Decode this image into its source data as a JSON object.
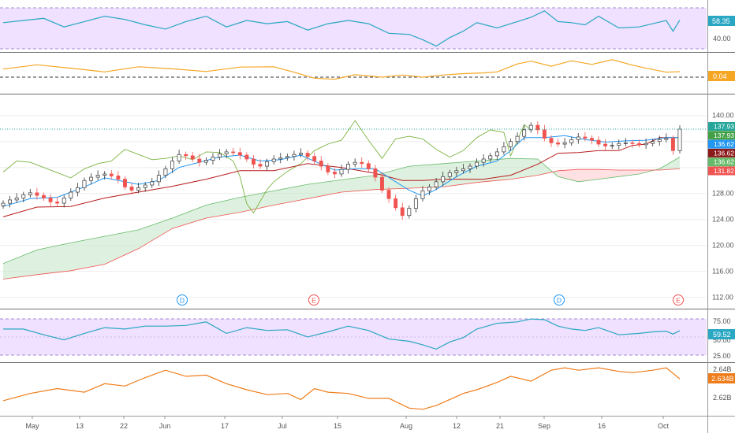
{
  "colors": {
    "rsi_line": "#2aa7c3",
    "rsi_band": "#efe1ff",
    "osc_line": "#f5a623",
    "vol_line": "#ef7c1a",
    "up": "#26a69a",
    "down": "#ef5350",
    "tenkan": "#2196f3",
    "kijun": "#b71c1c",
    "span_a": "#66bb6a",
    "span_b": "#ef5350",
    "lagging": "#7cb342",
    "cloud_bull": "#c8e6c9",
    "cloud_bear": "#ffcdd2",
    "last_price": "#26a69a",
    "grid": "#eeeeee",
    "axis_text": "#555555"
  },
  "x_axis": {
    "labels": [
      "May",
      "13",
      "22",
      "Jun",
      "17",
      "Jul",
      "15",
      "Aug",
      "12",
      "21",
      "Sep",
      "16",
      "Oct"
    ]
  },
  "panes": {
    "rsi_top": {
      "value_label": "58.35",
      "ticks": [
        "40.00"
      ]
    },
    "oscillator": {
      "value_label": "0.04",
      "ticks": []
    },
    "price": {
      "ticks": [
        "140.00",
        "136.00",
        "132.00",
        "128.00",
        "124.00",
        "120.00",
        "116.00",
        "112.00"
      ],
      "badges": [
        {
          "text": "137.93",
          "color": "#26a69a"
        },
        {
          "text": "137.93",
          "color": "#43a047"
        },
        {
          "text": "136.62",
          "color": "#2196f3"
        },
        {
          "text": "136.62",
          "color": "#8b1a1a"
        },
        {
          "text": "136.62",
          "color": "#66bb6a"
        },
        {
          "text": "131.82",
          "color": "#ef5350"
        }
      ],
      "events": [
        {
          "letter": "D",
          "color": "#2196f3"
        },
        {
          "letter": "E",
          "color": "#ef5350"
        },
        {
          "letter": "D",
          "color": "#2196f3"
        },
        {
          "letter": "E",
          "color": "#ef5350"
        }
      ]
    },
    "rsi_bottom": {
      "value_label": "59.52",
      "ticks": [
        "75.00",
        "50.00",
        "25.00"
      ]
    },
    "volume": {
      "value_label": "2.634B",
      "ticks": [
        "2.64B",
        "2.62B"
      ]
    }
  },
  "chart_data": {
    "type": "line",
    "y_price_range": [
      110.5,
      143
    ],
    "candles": {
      "x": [
        0,
        2,
        4,
        6,
        8,
        10,
        12,
        14,
        16,
        18,
        20,
        22,
        24,
        26,
        28,
        30,
        32,
        34,
        36,
        38,
        40,
        42,
        44,
        46,
        48,
        50,
        52,
        54,
        56,
        58,
        60,
        62,
        64,
        66,
        68,
        70,
        72,
        74,
        76,
        78,
        80,
        82,
        84,
        86,
        88,
        90,
        92,
        94,
        96,
        98,
        100,
        102,
        104,
        106,
        108,
        110,
        112,
        114,
        116,
        118,
        120,
        122,
        124,
        126,
        128,
        130,
        132,
        134,
        136,
        138,
        140,
        142,
        144,
        146,
        148,
        150,
        152,
        154,
        156,
        158,
        160,
        162,
        164,
        166,
        168,
        170,
        172,
        174,
        176,
        178,
        180,
        182,
        184,
        186,
        188,
        190,
        192,
        194,
        196,
        198,
        200
      ],
      "close": [
        126.5,
        127.0,
        127.3,
        127.8,
        128.1,
        127.7,
        127.3,
        126.7,
        126.5,
        127.3,
        128.2,
        128.9,
        130.0,
        130.5,
        130.8,
        131.0,
        130.7,
        130.2,
        129.0,
        128.5,
        128.9,
        129.3,
        129.8,
        130.8,
        131.8,
        133.0,
        134.0,
        133.8,
        133.3,
        132.8,
        133.1,
        133.6,
        134.1,
        134.4,
        134.3,
        133.9,
        133.3,
        132.5,
        132.2,
        132.9,
        133.3,
        133.5,
        133.7,
        134.0,
        134.2,
        133.7,
        133.0,
        132.2,
        131.3,
        131.0,
        131.7,
        132.5,
        132.8,
        132.6,
        131.8,
        130.5,
        128.5,
        127.2,
        125.8,
        124.6,
        125.7,
        127.2,
        128.4,
        129.0,
        129.8,
        130.6,
        131.2,
        131.5,
        131.8,
        132.2,
        132.8,
        133.3,
        133.8,
        134.4,
        135.2,
        136.0,
        136.8,
        137.8,
        138.5,
        137.8,
        136.5,
        135.8,
        135.6,
        135.8,
        136.3,
        136.7,
        136.5,
        136.2,
        135.6,
        135.3,
        135.4,
        135.7,
        135.8,
        135.7,
        135.5,
        135.7,
        136.0,
        136.3,
        136.5,
        134.6,
        137.9
      ]
    },
    "tenkan": {
      "x": [
        0,
        8,
        16,
        24,
        30,
        36,
        40,
        46,
        52,
        58,
        64,
        70,
        76,
        82,
        88,
        94,
        98,
        104,
        110,
        116,
        120,
        124,
        128,
        134,
        140,
        146,
        150,
        154,
        160,
        166,
        172,
        178,
        184,
        190,
        196,
        200
      ],
      "y": [
        126.0,
        127.2,
        127.4,
        129.0,
        130.4,
        129.8,
        129.4,
        130.0,
        132.0,
        132.8,
        133.6,
        133.9,
        133.0,
        133.2,
        133.9,
        132.5,
        131.6,
        131.8,
        131.8,
        129.8,
        128.5,
        127.6,
        128.6,
        130.6,
        132.2,
        133.0,
        134.6,
        136.6,
        136.6,
        136.9,
        136.3,
        135.9,
        136.1,
        136.2,
        136.6,
        136.6
      ]
    },
    "kijun": {
      "x": [
        0,
        10,
        20,
        30,
        40,
        50,
        60,
        70,
        80,
        90,
        100,
        110,
        118,
        124,
        130,
        136,
        142,
        150,
        158,
        164,
        170,
        176,
        182,
        186,
        190,
        194,
        198,
        200
      ],
      "y": [
        124.4,
        125.9,
        126.0,
        127.3,
        128.2,
        129.1,
        130.2,
        131.5,
        131.5,
        132.6,
        132.0,
        131.1,
        130.0,
        130.0,
        130.2,
        130.2,
        130.2,
        130.8,
        132.5,
        134.2,
        134.3,
        134.6,
        134.6,
        135.4,
        135.6,
        136.6,
        136.6,
        136.6
      ]
    },
    "span_a": {
      "x": [
        0,
        10,
        20,
        30,
        40,
        50,
        60,
        70,
        80,
        90,
        100,
        110,
        120,
        130,
        140,
        150,
        158,
        164,
        170,
        176,
        182,
        188,
        194,
        200
      ],
      "y": [
        117.2,
        119.3,
        120.4,
        121.4,
        122.4,
        124.2,
        126.2,
        127.4,
        128.4,
        129.4,
        130.1,
        130.8,
        132.2,
        132.6,
        133.0,
        133.4,
        133.3,
        130.6,
        129.8,
        130.2,
        130.6,
        131.0,
        131.8,
        133.6
      ]
    },
    "span_b": {
      "x": [
        0,
        10,
        20,
        30,
        40,
        50,
        60,
        70,
        80,
        90,
        100,
        110,
        120,
        130,
        140,
        150,
        158,
        164,
        170,
        176,
        182,
        188,
        194,
        200
      ],
      "y": [
        114.8,
        115.5,
        116.1,
        117.1,
        119.5,
        122.6,
        124.2,
        125.1,
        126.2,
        127.2,
        128.2,
        128.6,
        128.8,
        129.0,
        129.7,
        130.2,
        130.8,
        131.5,
        131.7,
        131.7,
        131.6,
        131.6,
        131.6,
        131.8
      ]
    },
    "lagging": {
      "x": [
        0,
        4,
        8,
        12,
        16,
        20,
        24,
        28,
        32,
        36,
        40,
        44,
        48,
        52,
        56,
        60,
        64,
        68,
        70,
        72,
        74,
        76,
        78,
        80,
        84,
        88,
        92,
        96,
        100,
        104,
        108,
        112,
        116,
        120,
        124,
        128,
        132,
        136,
        140,
        144,
        148,
        150,
        152,
        154,
        156
      ],
      "y": [
        131.3,
        133.0,
        132.8,
        132.0,
        131.2,
        130.4,
        131.8,
        132.6,
        133.0,
        134.8,
        134.0,
        133.2,
        133.4,
        133.8,
        133.2,
        134.4,
        134.3,
        133.0,
        130.6,
        126.4,
        125.0,
        126.8,
        128.6,
        129.8,
        131.4,
        132.6,
        134.6,
        135.6,
        136.2,
        139.2,
        136.2,
        133.4,
        136.4,
        136.8,
        136.4,
        134.8,
        133.6,
        134.6,
        136.6,
        137.8,
        137.4,
        133.8,
        136.2,
        138.6,
        137.8
      ]
    },
    "rsi_top": {
      "y_range": [
        30,
        75
      ],
      "x": [
        0,
        6,
        12,
        18,
        24,
        30,
        36,
        42,
        48,
        54,
        60,
        66,
        72,
        78,
        84,
        90,
        96,
        102,
        108,
        114,
        120,
        124,
        128,
        132,
        136,
        140,
        146,
        152,
        156,
        160,
        164,
        168,
        172,
        176,
        182,
        188,
        192,
        196,
        198,
        200
      ],
      "y": [
        56,
        58,
        60,
        52,
        57,
        62,
        59,
        54,
        50,
        57,
        62,
        52,
        58,
        55,
        57,
        49,
        55,
        58,
        55,
        46,
        45,
        40,
        34,
        42,
        48,
        56,
        51,
        57,
        61,
        67,
        57,
        56,
        54,
        62,
        51,
        52,
        55,
        58,
        48,
        58.35
      ]
    },
    "oscillator": {
      "y_range": [
        -1.4,
        1.2
      ],
      "x": [
        0,
        10,
        20,
        30,
        40,
        50,
        60,
        70,
        80,
        86,
        92,
        98,
        104,
        112,
        118,
        124,
        130,
        136,
        142,
        146,
        152,
        156,
        162,
        168,
        174,
        180,
        186,
        190,
        196,
        200
      ],
      "y": [
        0.22,
        0.52,
        0.28,
        0.02,
        0.38,
        0.24,
        0.05,
        0.36,
        0.38,
        0.0,
        -0.42,
        -0.5,
        -0.18,
        -0.35,
        -0.2,
        -0.35,
        -0.2,
        -0.1,
        -0.05,
        0.02,
        0.58,
        0.78,
        0.42,
        0.8,
        0.55,
        0.88,
        0.5,
        0.28,
        0.0,
        0.04
      ]
    },
    "rsi_bottom": {
      "y_range": [
        18,
        86
      ],
      "x": [
        0,
        6,
        12,
        18,
        24,
        30,
        36,
        42,
        48,
        54,
        60,
        66,
        72,
        78,
        84,
        90,
        96,
        102,
        108,
        114,
        120,
        124,
        128,
        132,
        136,
        140,
        146,
        152,
        156,
        160,
        164,
        168,
        172,
        176,
        182,
        188,
        192,
        196,
        198,
        200
      ],
      "y": [
        62,
        62,
        54,
        47,
        56,
        64,
        62,
        66,
        66,
        67,
        72,
        56,
        64,
        60,
        61,
        51,
        58,
        66,
        60,
        48,
        45,
        40,
        34,
        44,
        50,
        62,
        70,
        72,
        76,
        75,
        66,
        62,
        60,
        64,
        54,
        56,
        58,
        59,
        55,
        59.52
      ]
    },
    "volume": {
      "y_range": [
        2.605,
        2.645
      ],
      "x": [
        0,
        8,
        16,
        24,
        30,
        36,
        42,
        48,
        54,
        60,
        66,
        72,
        78,
        84,
        88,
        92,
        96,
        102,
        108,
        114,
        120,
        124,
        128,
        132,
        136,
        140,
        146,
        150,
        156,
        162,
        166,
        170,
        176,
        182,
        186,
        192,
        196,
        200
      ],
      "y": [
        2.616,
        2.622,
        2.626,
        2.623,
        2.63,
        2.628,
        2.635,
        2.641,
        2.636,
        2.637,
        2.63,
        2.625,
        2.621,
        2.622,
        2.617,
        2.626,
        2.623,
        2.622,
        2.618,
        2.618,
        2.61,
        2.609,
        2.612,
        2.617,
        2.622,
        2.625,
        2.631,
        2.636,
        2.632,
        2.641,
        2.643,
        2.641,
        2.643,
        2.64,
        2.639,
        2.641,
        2.643,
        2.634
      ]
    }
  }
}
